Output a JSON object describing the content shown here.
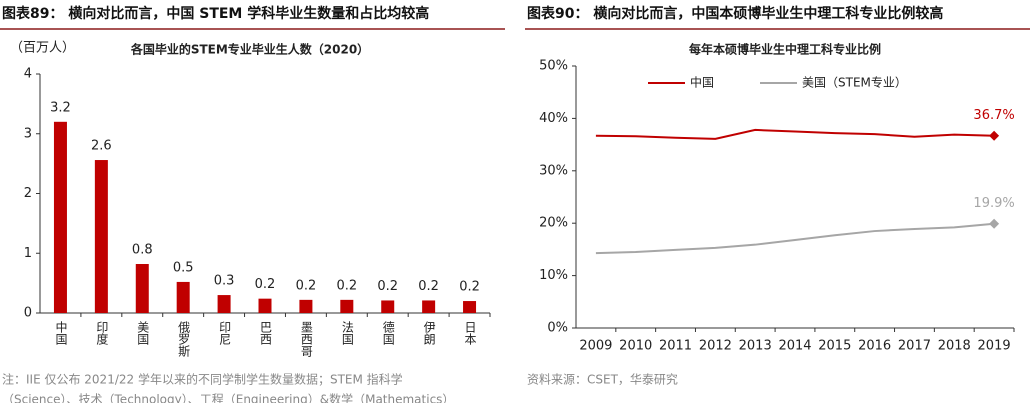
{
  "chart_data": [
    {
      "type": "bar",
      "caption": "图表89： 横向对比而言，中国 STEM 学科毕业生数量和占比均较高",
      "title": "各国毕业的STEM专业毕业生人数（2020）",
      "y_label": "（百万人）",
      "categories": [
        "中国",
        "印度",
        "美国",
        "俄罗斯",
        "印尼",
        "巴西",
        "墨西哥",
        "法国",
        "德国",
        "伊朗",
        "日本"
      ],
      "values": [
        3.2,
        2.56,
        0.82,
        0.52,
        0.3,
        0.24,
        0.22,
        0.22,
        0.21,
        0.21,
        0.2
      ],
      "value_labels": [
        "3.2",
        "2.6",
        "0.8",
        "0.5",
        "0.3",
        "0.2",
        "0.2",
        "0.2",
        "0.2",
        "0.2",
        "0.2"
      ],
      "color": "#c00000",
      "ylim": [
        0,
        4
      ],
      "yticks": [
        0,
        1,
        2,
        3,
        4
      ],
      "notes": [
        "注：IIE 仅公布 2021/22 学年以来的不同学制学生数量数据；STEM 指科学",
        "（Science）、技术（Technology）、工程（Engineering）&数学（Mathematics）"
      ]
    },
    {
      "type": "line",
      "caption": "图表90： 横向对比而言，中国本硕博毕业生中理工科专业比例较高",
      "title": "每年本硕博毕业生中理工科专业比例",
      "categories": [
        "2009",
        "2010",
        "2011",
        "2012",
        "2013",
        "2014",
        "2015",
        "2016",
        "2017",
        "2018",
        "2019"
      ],
      "series": [
        {
          "name": "中国",
          "color": "#c00000",
          "values": [
            36.7,
            36.6,
            36.3,
            36.1,
            37.8,
            37.5,
            37.2,
            37.0,
            36.5,
            36.9,
            36.7
          ],
          "value_labels": [
            null,
            null,
            null,
            null,
            null,
            null,
            null,
            null,
            null,
            null,
            "36.7%"
          ]
        },
        {
          "name": "美国（STEM专业）",
          "color": "#a6a6a6",
          "values": [
            14.3,
            14.5,
            14.9,
            15.3,
            15.9,
            16.8,
            17.7,
            18.5,
            18.9,
            19.2,
            19.9
          ],
          "value_labels": [
            null,
            null,
            null,
            null,
            null,
            null,
            null,
            null,
            null,
            null,
            "19.9%"
          ]
        }
      ],
      "ylim": [
        0,
        50
      ],
      "yticks": [
        {
          "value": 0,
          "label": "0%"
        },
        {
          "value": 10,
          "label": "10%"
        },
        {
          "value": 20,
          "label": "20%"
        },
        {
          "value": 30,
          "label": "30%"
        },
        {
          "value": 40,
          "label": "40%"
        },
        {
          "value": 50,
          "label": "50%"
        }
      ],
      "legend": "top",
      "notes": [
        "资料来源：CSET，华泰研究"
      ]
    }
  ]
}
